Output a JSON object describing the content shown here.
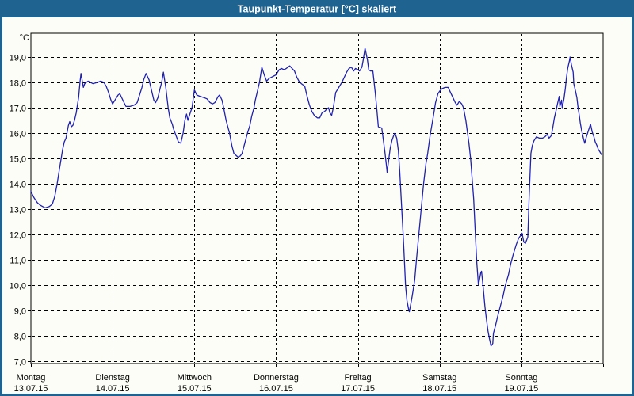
{
  "window": {
    "title": "Taupunkt-Temperatur [°C] skaliert"
  },
  "colors": {
    "title_bar": "#1f6391",
    "title_text": "#ffffff",
    "window_border": "#1f6391",
    "background": "#fbfdf6",
    "plot_border": "#000000",
    "grid": "#000000",
    "tick_text": "#000000",
    "curve": "#2121b0"
  },
  "chart_data": {
    "type": "line",
    "title": "Taupunkt-Temperatur [°C] skaliert",
    "ylabel": "°C",
    "ylim": [
      7.0,
      19.9
    ],
    "xlim_hours": [
      0,
      168
    ],
    "x_unit": "hours since Montag 13.07.15 00:00",
    "grid": "dashed",
    "legend": "none",
    "y_ticks": [
      "19,0",
      "18,0",
      "17,0",
      "16,0",
      "15,0",
      "14,0",
      "13,0",
      "12,0",
      "11,0",
      "10,0",
      "9,0",
      "8,0",
      "7,0"
    ],
    "y_tick_values": [
      19,
      18,
      17,
      16,
      15,
      14,
      13,
      12,
      11,
      10,
      9,
      8,
      7
    ],
    "x_day_labels": [
      {
        "day": "Montag",
        "date": "13.07.15",
        "hour": 0
      },
      {
        "day": "Dienstag",
        "date": "14.07.15",
        "hour": 24
      },
      {
        "day": "Mittwoch",
        "date": "15.07.15",
        "hour": 48
      },
      {
        "day": "Donnerstag",
        "date": "16.07.15",
        "hour": 72
      },
      {
        "day": "Freitag",
        "date": "17.07.15",
        "hour": 96
      },
      {
        "day": "Samstag",
        "date": "18.07.15",
        "hour": 120
      },
      {
        "day": "Sonntag",
        "date": "19.07.15",
        "hour": 144
      }
    ],
    "series": [
      {
        "name": "Taupunkt-Temperatur",
        "points": [
          [
            0.0,
            13.7
          ],
          [
            0.9,
            13.45
          ],
          [
            1.9,
            13.25
          ],
          [
            2.8,
            13.15
          ],
          [
            4.2,
            13.05
          ],
          [
            5.4,
            13.1
          ],
          [
            6.3,
            13.2
          ],
          [
            7.0,
            13.5
          ],
          [
            7.7,
            14.0
          ],
          [
            8.4,
            14.6
          ],
          [
            8.9,
            15.0
          ],
          [
            9.3,
            15.35
          ],
          [
            9.8,
            15.65
          ],
          [
            10.3,
            15.8
          ],
          [
            11.0,
            16.3
          ],
          [
            11.4,
            16.45
          ],
          [
            11.9,
            16.25
          ],
          [
            12.3,
            16.3
          ],
          [
            12.8,
            16.5
          ],
          [
            13.3,
            16.8
          ],
          [
            13.7,
            17.15
          ],
          [
            14.0,
            17.4
          ],
          [
            14.4,
            18.0
          ],
          [
            14.7,
            18.35
          ],
          [
            15.4,
            17.8
          ],
          [
            15.8,
            17.95
          ],
          [
            16.8,
            18.05
          ],
          [
            18.2,
            17.95
          ],
          [
            19.6,
            18.0
          ],
          [
            20.5,
            18.05
          ],
          [
            21.4,
            18.0
          ],
          [
            22.1,
            17.85
          ],
          [
            22.8,
            17.6
          ],
          [
            23.5,
            17.3
          ],
          [
            24.0,
            17.15
          ],
          [
            25.6,
            17.5
          ],
          [
            26.1,
            17.55
          ],
          [
            27.0,
            17.3
          ],
          [
            27.9,
            17.05
          ],
          [
            29.1,
            17.05
          ],
          [
            30.3,
            17.1
          ],
          [
            31.2,
            17.2
          ],
          [
            31.9,
            17.5
          ],
          [
            32.6,
            17.8
          ],
          [
            33.1,
            18.1
          ],
          [
            33.8,
            18.35
          ],
          [
            34.7,
            18.1
          ],
          [
            35.4,
            17.7
          ],
          [
            36.1,
            17.3
          ],
          [
            36.6,
            17.2
          ],
          [
            37.3,
            17.4
          ],
          [
            38.0,
            17.8
          ],
          [
            38.4,
            18.0
          ],
          [
            38.9,
            18.4
          ],
          [
            39.6,
            17.8
          ],
          [
            40.3,
            17.0
          ],
          [
            40.8,
            16.6
          ],
          [
            41.5,
            16.35
          ],
          [
            41.9,
            16.15
          ],
          [
            42.6,
            15.9
          ],
          [
            43.3,
            15.65
          ],
          [
            44.0,
            15.6
          ],
          [
            44.7,
            16.0
          ],
          [
            45.2,
            16.5
          ],
          [
            45.7,
            16.75
          ],
          [
            46.1,
            16.5
          ],
          [
            46.8,
            16.8
          ],
          [
            47.3,
            17.0
          ],
          [
            48.0,
            17.7
          ],
          [
            48.7,
            17.5
          ],
          [
            49.6,
            17.45
          ],
          [
            50.8,
            17.4
          ],
          [
            51.7,
            17.35
          ],
          [
            52.6,
            17.2
          ],
          [
            53.3,
            17.15
          ],
          [
            54.0,
            17.2
          ],
          [
            55.0,
            17.45
          ],
          [
            55.4,
            17.5
          ],
          [
            56.1,
            17.3
          ],
          [
            56.6,
            17.0
          ],
          [
            57.3,
            16.5
          ],
          [
            58.3,
            16.0
          ],
          [
            59.0,
            15.5
          ],
          [
            59.6,
            15.2
          ],
          [
            60.8,
            15.05
          ],
          [
            61.5,
            15.1
          ],
          [
            62.0,
            15.2
          ],
          [
            62.9,
            15.65
          ],
          [
            63.6,
            16.0
          ],
          [
            64.3,
            16.3
          ],
          [
            64.8,
            16.65
          ],
          [
            65.5,
            17.0
          ],
          [
            65.9,
            17.3
          ],
          [
            66.6,
            17.7
          ],
          [
            67.1,
            18.0
          ],
          [
            67.8,
            18.6
          ],
          [
            68.5,
            18.3
          ],
          [
            69.2,
            18.05
          ],
          [
            69.9,
            18.15
          ],
          [
            70.6,
            18.2
          ],
          [
            71.3,
            18.25
          ],
          [
            72.0,
            18.3
          ],
          [
            72.2,
            18.35
          ],
          [
            72.9,
            18.5
          ],
          [
            73.6,
            18.55
          ],
          [
            74.3,
            18.5
          ],
          [
            75.0,
            18.55
          ],
          [
            76.0,
            18.65
          ],
          [
            76.7,
            18.55
          ],
          [
            77.4,
            18.45
          ],
          [
            78.1,
            18.2
          ],
          [
            78.7,
            18.05
          ],
          [
            79.4,
            17.95
          ],
          [
            80.4,
            17.85
          ],
          [
            81.1,
            17.45
          ],
          [
            81.8,
            17.1
          ],
          [
            82.5,
            16.85
          ],
          [
            83.2,
            16.7
          ],
          [
            84.1,
            16.6
          ],
          [
            84.8,
            16.6
          ],
          [
            85.5,
            16.8
          ],
          [
            86.2,
            16.85
          ],
          [
            86.9,
            16.95
          ],
          [
            87.4,
            17.0
          ],
          [
            87.8,
            16.8
          ],
          [
            88.3,
            16.7
          ],
          [
            88.8,
            17.0
          ],
          [
            89.5,
            17.6
          ],
          [
            90.4,
            17.8
          ],
          [
            91.3,
            18.0
          ],
          [
            92.0,
            18.2
          ],
          [
            92.7,
            18.4
          ],
          [
            93.4,
            18.55
          ],
          [
            94.1,
            18.6
          ],
          [
            94.8,
            18.45
          ],
          [
            95.3,
            18.55
          ],
          [
            96.0,
            18.5
          ],
          [
            96.5,
            18.45
          ],
          [
            97.2,
            18.6
          ],
          [
            97.6,
            18.9
          ],
          [
            98.1,
            19.35
          ],
          [
            98.8,
            18.9
          ],
          [
            99.2,
            18.5
          ],
          [
            99.7,
            18.45
          ],
          [
            100.4,
            18.45
          ],
          [
            101.1,
            17.6
          ],
          [
            101.6,
            16.9
          ],
          [
            102.0,
            16.25
          ],
          [
            103.0,
            16.2
          ],
          [
            103.4,
            15.8
          ],
          [
            103.9,
            15.3
          ],
          [
            104.4,
            14.7
          ],
          [
            104.6,
            14.45
          ],
          [
            105.1,
            15.0
          ],
          [
            105.5,
            15.4
          ],
          [
            106.0,
            15.7
          ],
          [
            106.5,
            15.9
          ],
          [
            106.9,
            16.0
          ],
          [
            107.4,
            15.8
          ],
          [
            107.9,
            15.3
          ],
          [
            108.3,
            14.5
          ],
          [
            108.8,
            13.2
          ],
          [
            109.3,
            12.0
          ],
          [
            109.7,
            10.9
          ],
          [
            110.0,
            10.0
          ],
          [
            110.4,
            9.4
          ],
          [
            110.9,
            9.05
          ],
          [
            111.1,
            8.95
          ],
          [
            111.6,
            9.3
          ],
          [
            112.0,
            9.6
          ],
          [
            112.7,
            10.2
          ],
          [
            113.2,
            11.0
          ],
          [
            113.9,
            12.0
          ],
          [
            114.6,
            13.0
          ],
          [
            115.3,
            14.0
          ],
          [
            116.0,
            14.8
          ],
          [
            116.5,
            15.2
          ],
          [
            117.2,
            15.9
          ],
          [
            118.1,
            16.6
          ],
          [
            118.8,
            17.2
          ],
          [
            119.5,
            17.55
          ],
          [
            120.0,
            17.65
          ],
          [
            120.7,
            17.75
          ],
          [
            121.6,
            17.8
          ],
          [
            122.5,
            17.8
          ],
          [
            123.2,
            17.6
          ],
          [
            123.9,
            17.4
          ],
          [
            124.6,
            17.2
          ],
          [
            125.1,
            17.1
          ],
          [
            125.8,
            17.25
          ],
          [
            126.5,
            17.15
          ],
          [
            127.0,
            17.0
          ],
          [
            127.7,
            16.5
          ],
          [
            128.1,
            16.1
          ],
          [
            128.6,
            15.6
          ],
          [
            129.1,
            15.0
          ],
          [
            129.5,
            14.3
          ],
          [
            130.0,
            13.4
          ],
          [
            130.5,
            12.0
          ],
          [
            130.9,
            10.9
          ],
          [
            131.4,
            10.0
          ],
          [
            132.1,
            10.5
          ],
          [
            132.3,
            10.55
          ],
          [
            132.8,
            9.9
          ],
          [
            133.3,
            9.15
          ],
          [
            133.7,
            8.7
          ],
          [
            134.2,
            8.2
          ],
          [
            134.6,
            7.9
          ],
          [
            135.1,
            7.6
          ],
          [
            135.6,
            7.7
          ],
          [
            135.8,
            8.1
          ],
          [
            136.3,
            8.35
          ],
          [
            137.0,
            8.75
          ],
          [
            137.9,
            9.2
          ],
          [
            138.6,
            9.55
          ],
          [
            139.3,
            10.0
          ],
          [
            140.2,
            10.4
          ],
          [
            140.9,
            10.85
          ],
          [
            141.6,
            11.2
          ],
          [
            142.5,
            11.6
          ],
          [
            143.2,
            11.85
          ],
          [
            144.0,
            12.0
          ],
          [
            144.2,
            12.05
          ],
          [
            144.7,
            11.7
          ],
          [
            145.2,
            11.65
          ],
          [
            145.9,
            11.9
          ],
          [
            146.3,
            13.5
          ],
          [
            146.8,
            15.2
          ],
          [
            147.2,
            15.5
          ],
          [
            147.7,
            15.7
          ],
          [
            148.4,
            15.85
          ],
          [
            149.3,
            15.8
          ],
          [
            150.2,
            15.8
          ],
          [
            150.9,
            15.85
          ],
          [
            151.6,
            15.95
          ],
          [
            152.1,
            15.8
          ],
          [
            152.8,
            15.9
          ],
          [
            153.2,
            16.2
          ],
          [
            153.7,
            16.6
          ],
          [
            154.2,
            16.9
          ],
          [
            154.6,
            17.15
          ],
          [
            155.1,
            17.45
          ],
          [
            155.3,
            17.05
          ],
          [
            155.8,
            17.3
          ],
          [
            156.0,
            17.0
          ],
          [
            156.5,
            17.35
          ],
          [
            156.9,
            17.75
          ],
          [
            157.2,
            18.15
          ],
          [
            157.6,
            18.55
          ],
          [
            158.1,
            18.85
          ],
          [
            158.3,
            19.0
          ],
          [
            158.7,
            18.7
          ],
          [
            159.2,
            18.4
          ],
          [
            159.4,
            17.95
          ],
          [
            159.9,
            17.65
          ],
          [
            160.3,
            17.4
          ],
          [
            160.6,
            17.05
          ],
          [
            161.0,
            16.7
          ],
          [
            161.3,
            16.4
          ],
          [
            161.7,
            16.1
          ],
          [
            162.2,
            15.8
          ],
          [
            162.6,
            15.6
          ],
          [
            163.1,
            15.85
          ],
          [
            163.8,
            16.15
          ],
          [
            164.3,
            16.35
          ],
          [
            164.8,
            16.05
          ],
          [
            165.3,
            15.85
          ],
          [
            165.7,
            15.65
          ],
          [
            166.2,
            15.5
          ],
          [
            166.6,
            15.35
          ],
          [
            167.1,
            15.25
          ],
          [
            167.5,
            15.15
          ]
        ]
      }
    ]
  }
}
